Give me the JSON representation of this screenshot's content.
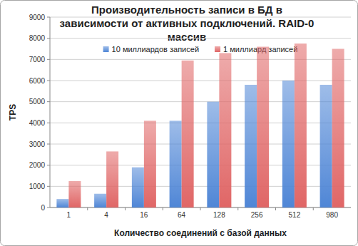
{
  "chart_data": {
    "type": "bar",
    "title": "Производительность записи в БД в зависимости от активных подключений. RAID-0 массив",
    "x_label": "Количество соединений с базой данных",
    "y_label": "TPS",
    "categories": [
      "1",
      "4",
      "16",
      "64",
      "128",
      "256",
      "512",
      "980"
    ],
    "series": [
      {
        "name": "10 миллиардов записей",
        "color": "#4f86d6",
        "values": [
          400,
          650,
          1900,
          4100,
          5000,
          5800,
          6000,
          5800
        ]
      },
      {
        "name": "1 миллиард записей",
        "color": "#e06666",
        "values": [
          1250,
          2650,
          4100,
          6950,
          7300,
          7600,
          7750,
          7500
        ]
      }
    ],
    "ylim": [
      0,
      9000
    ],
    "yticks": [
      0,
      1000,
      2000,
      3000,
      4000,
      5000,
      6000,
      7000,
      8000,
      9000
    ],
    "grid": true,
    "legend": "top"
  }
}
